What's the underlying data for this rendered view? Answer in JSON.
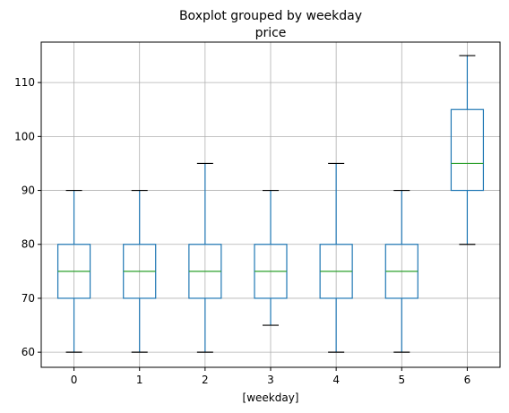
{
  "chart_data": {
    "type": "boxplot",
    "suptitle": "Boxplot grouped by weekday",
    "title": "price",
    "xlabel": "[weekday]",
    "ylabel": "",
    "categories": [
      "0",
      "1",
      "2",
      "3",
      "4",
      "5",
      "6"
    ],
    "ylim": [
      57.2,
      117.5
    ],
    "yticks": [
      60,
      70,
      80,
      90,
      100,
      110
    ],
    "grid": true,
    "boxes": [
      {
        "category": "0",
        "whisker_low": 60,
        "q1": 70,
        "median": 75,
        "q3": 80,
        "whisker_high": 90
      },
      {
        "category": "1",
        "whisker_low": 60,
        "q1": 70,
        "median": 75,
        "q3": 80,
        "whisker_high": 90
      },
      {
        "category": "2",
        "whisker_low": 60,
        "q1": 70,
        "median": 75,
        "q3": 80,
        "whisker_high": 95
      },
      {
        "category": "3",
        "whisker_low": 65,
        "q1": 70,
        "median": 75,
        "q3": 80,
        "whisker_high": 90
      },
      {
        "category": "4",
        "whisker_low": 60,
        "q1": 70,
        "median": 75,
        "q3": 80,
        "whisker_high": 95
      },
      {
        "category": "5",
        "whisker_low": 60,
        "q1": 70,
        "median": 75,
        "q3": 80,
        "whisker_high": 90
      },
      {
        "category": "6",
        "whisker_low": 80,
        "q1": 90,
        "median": 95,
        "q3": 105,
        "whisker_high": 115
      }
    ],
    "colors": {
      "box": "#1f77b4",
      "median": "#2ca02c",
      "cap": "#000000",
      "grid": "#b0b0b0",
      "axis": "#000000"
    }
  }
}
